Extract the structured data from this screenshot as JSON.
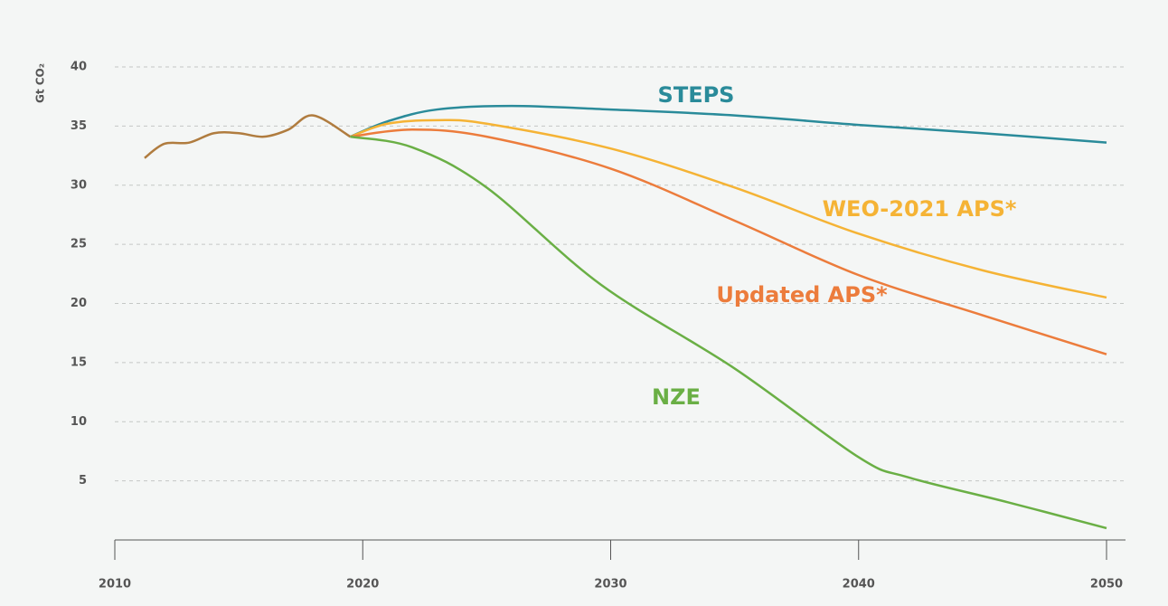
{
  "chart_data": {
    "type": "line",
    "y_label": "Gt CO₂",
    "xlim": [
      2010,
      2050
    ],
    "xticks": [
      2010,
      2020,
      2030,
      2040,
      2050
    ],
    "ylim": [
      0,
      40
    ],
    "yticks": [
      5,
      10,
      15,
      20,
      25,
      30,
      35,
      40
    ],
    "grid": true,
    "series": [
      {
        "color": "#b07c3f",
        "x": [
          2011.2,
          2012,
          2013,
          2014,
          2015,
          2016,
          2017,
          2018,
          2019.5
        ],
        "values": [
          32.3,
          33.5,
          33.6,
          34.4,
          34.4,
          34.1,
          34.7,
          35.9,
          34.1
        ]
      },
      {
        "name": "STEPS",
        "color": "#2a8b9a",
        "x": [
          2019.5,
          2021,
          2023,
          2026,
          2030,
          2035,
          2040,
          2045,
          2050
        ],
        "values": [
          34.1,
          35.4,
          36.4,
          36.7,
          36.4,
          35.9,
          35.1,
          34.4,
          33.6
        ]
      },
      {
        "name": "WEO-2021 APS*",
        "color": "#f5b335",
        "x": [
          2019.5,
          2021,
          2023,
          2025,
          2030,
          2035,
          2040,
          2045,
          2050
        ],
        "values": [
          34.1,
          35.2,
          35.5,
          35.2,
          33.1,
          29.8,
          25.9,
          22.8,
          20.5
        ]
      },
      {
        "name": "Updated APS*",
        "color": "#ec7c3c",
        "x": [
          2019.5,
          2022,
          2025,
          2030,
          2035,
          2040,
          2045,
          2050
        ],
        "values": [
          34.1,
          34.7,
          34.1,
          31.4,
          27.0,
          22.4,
          19.0,
          15.7
        ]
      },
      {
        "name": "NZE",
        "color": "#6aaf45",
        "x": [
          2019.5,
          2022,
          2025,
          2029.6,
          2035,
          2040,
          2042,
          2046,
          2050
        ],
        "values": [
          34.1,
          33.2,
          29.8,
          21.6,
          14.5,
          7.0,
          5.3,
          3.2,
          1.0
        ]
      }
    ]
  }
}
